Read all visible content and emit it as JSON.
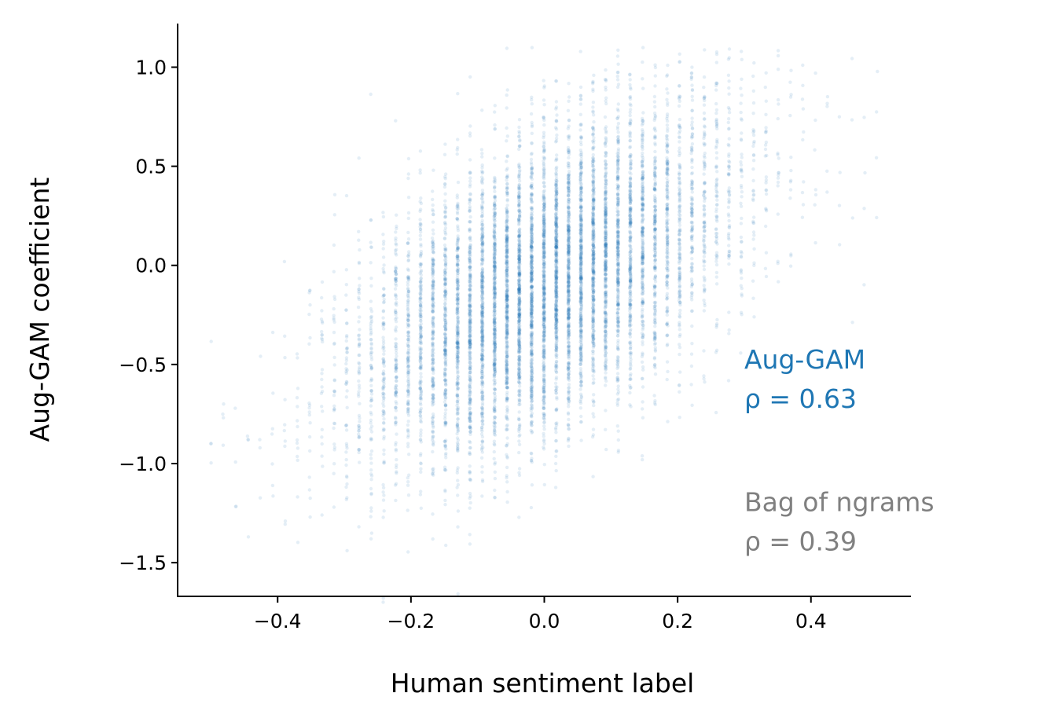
{
  "chart_data": {
    "type": "scatter",
    "title": "",
    "xlabel": "Human sentiment label",
    "ylabel": "Aug-GAM coefficient",
    "xlim": [
      -0.55,
      0.55
    ],
    "ylim": [
      -1.67,
      1.22
    ],
    "xticks": [
      {
        "value": -0.4,
        "label": "−0.4"
      },
      {
        "value": -0.2,
        "label": "−0.2"
      },
      {
        "value": 0.0,
        "label": "0.0"
      },
      {
        "value": 0.2,
        "label": "0.2"
      },
      {
        "value": 0.4,
        "label": "0.4"
      }
    ],
    "yticks": [
      {
        "value": 1.0,
        "label": "1.0"
      },
      {
        "value": 0.5,
        "label": "0.5"
      },
      {
        "value": 0.0,
        "label": "0.0"
      },
      {
        "value": -0.5,
        "label": "−0.5"
      },
      {
        "value": -1.0,
        "label": "−1.0"
      },
      {
        "value": -1.5,
        "label": "−1.5"
      }
    ],
    "grid": false,
    "series": [
      {
        "color": "#1f77b4",
        "point_opacity": 0.12,
        "x_range": [
          -0.5,
          0.5
        ],
        "x_step": 0.0185,
        "trend": {
          "slope": 1.57,
          "intercept": -0.1
        },
        "y_spread": 0.36,
        "points_per_column_at_center": 420,
        "approx_point_count": 9500
      }
    ],
    "annotations": [
      {
        "line1": "Aug-GAM",
        "line2": "ρ = 0.63",
        "color": "#1f77b4",
        "x": 0.3,
        "y": -0.52
      },
      {
        "line1": "Bag of ngrams",
        "line2": "ρ = 0.39",
        "color": "#808080",
        "x": 0.3,
        "y": -1.24
      }
    ]
  }
}
